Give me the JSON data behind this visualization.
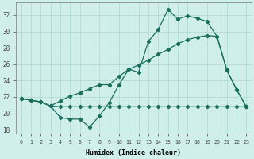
{
  "xlabel": "Humidex (Indice chaleur)",
  "background_color": "#d0efea",
  "grid_color": "#aad8ce",
  "line_color": "#1a6e5e",
  "xlim": [
    -0.5,
    23.5
  ],
  "ylim": [
    17.5,
    33.5
  ],
  "xticks": [
    0,
    1,
    2,
    3,
    4,
    5,
    6,
    7,
    8,
    9,
    10,
    11,
    12,
    13,
    14,
    15,
    16,
    17,
    18,
    19,
    20,
    21,
    22,
    23
  ],
  "yticks": [
    18,
    20,
    22,
    24,
    26,
    28,
    30,
    32
  ],
  "line1_y": [
    21.8,
    21.6,
    21.4,
    20.9,
    19.5,
    19.3,
    19.3,
    18.3,
    19.7,
    21.3,
    23.5,
    25.4,
    25.0,
    28.8,
    30.2,
    32.7,
    31.5,
    31.9,
    31.6,
    31.2,
    29.4,
    25.3,
    22.9,
    20.8
  ],
  "line2_y": [
    21.8,
    21.6,
    21.4,
    20.9,
    20.8,
    20.8,
    20.8,
    20.8,
    20.8,
    20.8,
    20.8,
    20.8,
    20.8,
    20.8,
    20.8,
    20.8,
    20.8,
    20.8,
    20.8,
    20.8,
    20.8,
    20.8,
    20.8,
    20.8
  ],
  "line3_y": [
    21.8,
    21.6,
    21.4,
    20.9,
    21.5,
    22.1,
    22.5,
    23.0,
    23.5,
    23.5,
    24.5,
    25.4,
    25.9,
    26.5,
    27.2,
    27.8,
    28.5,
    29.0,
    29.3,
    29.5,
    29.4,
    25.3,
    22.9,
    20.8
  ]
}
